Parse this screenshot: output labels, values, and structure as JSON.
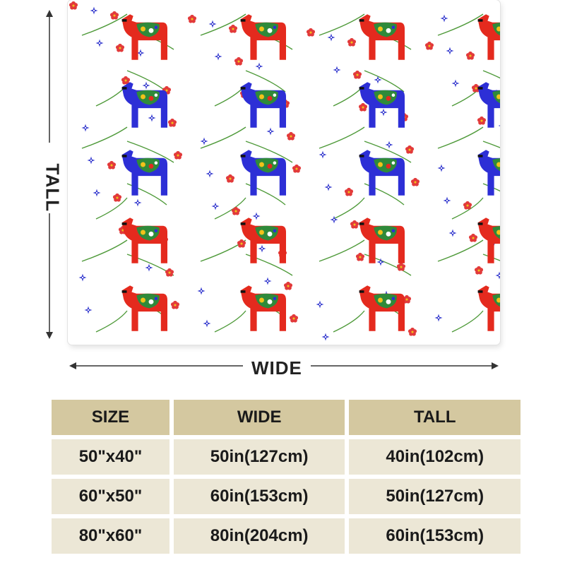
{
  "dimension_labels": {
    "tall": "TALL",
    "wide": "WIDE"
  },
  "blanket_pattern": {
    "motif": "dala-horse-floral",
    "colors": {
      "red_horse": "#e42a1e",
      "blue_horse": "#2d2fd6",
      "flower_red": "#e23a3a",
      "flower_blue": "#3a3fd0",
      "stem": "#4f9a3a",
      "saddle": "#f2c21a"
    }
  },
  "size_table": {
    "headers": [
      "SIZE",
      "WIDE",
      "TALL"
    ],
    "rows": [
      {
        "size": "50\"x40\"",
        "wide": "50in(127cm)",
        "tall": "40in(102cm)"
      },
      {
        "size": "60\"x50\"",
        "wide": "60in(153cm)",
        "tall": "50in(127cm)"
      },
      {
        "size": "80\"x60\"",
        "wide": "80in(204cm)",
        "tall": "60in(153cm)"
      }
    ],
    "colors": {
      "header_bg": "#d4c8a0",
      "cell_bg": "#ece7d6"
    }
  }
}
